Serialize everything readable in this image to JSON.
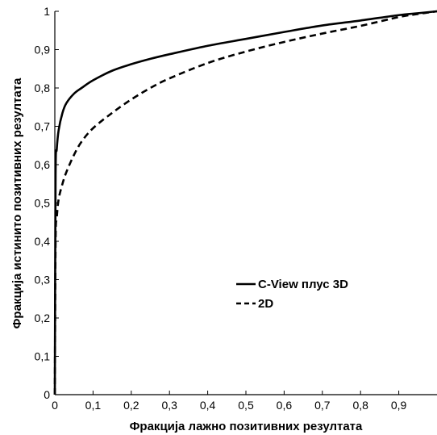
{
  "chart_data": {
    "type": "line",
    "title": "",
    "xlabel": "Фракција лажно позитивних резултата",
    "ylabel": "Фракција истинито позитивних резултата",
    "xlim": [
      0,
      1
    ],
    "ylim": [
      0,
      1
    ],
    "x_ticks": [
      "0",
      "0,1",
      "0,2",
      "0,3",
      "0,4",
      "0,5",
      "0,6",
      "0,7",
      "0,8",
      "0,9"
    ],
    "y_ticks": [
      "0",
      "0,1",
      "0,2",
      "0,3",
      "0,4",
      "0,5",
      "0,6",
      "0,7",
      "0,8",
      "0,9",
      "1"
    ],
    "grid": false,
    "legend_position": "center-right",
    "series": [
      {
        "name": "C-View плус 3D",
        "style": "solid",
        "color": "#000000",
        "x": [
          0,
          0.002,
          0.005,
          0.01,
          0.02,
          0.03,
          0.05,
          0.07,
          0.1,
          0.15,
          0.2,
          0.25,
          0.3,
          0.4,
          0.5,
          0.6,
          0.7,
          0.8,
          0.9,
          0.95,
          1.0
        ],
        "y": [
          0,
          0.57,
          0.64,
          0.69,
          0.735,
          0.76,
          0.785,
          0.8,
          0.82,
          0.845,
          0.862,
          0.876,
          0.888,
          0.91,
          0.928,
          0.946,
          0.963,
          0.976,
          0.99,
          0.995,
          1.0
        ]
      },
      {
        "name": "2D",
        "style": "dashed",
        "color": "#000000",
        "x": [
          0,
          0.002,
          0.005,
          0.01,
          0.02,
          0.03,
          0.05,
          0.07,
          0.1,
          0.15,
          0.2,
          0.25,
          0.3,
          0.4,
          0.5,
          0.6,
          0.7,
          0.8,
          0.9,
          0.95,
          1.0
        ],
        "y": [
          0,
          0.4,
          0.46,
          0.51,
          0.55,
          0.58,
          0.625,
          0.66,
          0.695,
          0.735,
          0.77,
          0.8,
          0.825,
          0.865,
          0.895,
          0.92,
          0.942,
          0.962,
          0.985,
          0.993,
          1.0
        ]
      }
    ]
  }
}
